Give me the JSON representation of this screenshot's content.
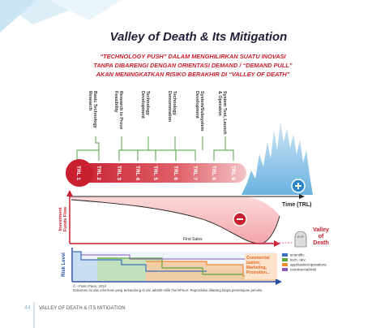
{
  "title": "Valley of Death & Its Mitigation",
  "subtitle": [
    "“TECHNOLOGY PUSH” DALAM MENGHILIRKAN SUATU INOVASI",
    "TANPA DIBARENGI DENGAN ORIENTASI DEMAND / “DEMAND PULL”",
    "AKAN MENINGKATKAN RISIKO BERAKHIR DI “VALLEY OF DEATH”"
  ],
  "stages": [
    [
      "Basic Technology",
      "Research"
    ],
    [
      "Research to Prove",
      "Feasibility"
    ],
    [
      "Technology",
      "Development"
    ],
    [
      "Technology",
      "Demonstration"
    ],
    [
      "System/Subsystem",
      "Development"
    ],
    [
      "System Test, Launch",
      "& Operation"
    ]
  ],
  "trl": [
    "TRL 1",
    "TRL 2",
    "TRL 3",
    "TRL 4",
    "TRL 5",
    "TRL 6",
    "TRL 7",
    "TRL 8",
    "TRL 9"
  ],
  "labels": {
    "time": "Time (TRL)",
    "investment": [
      "Investment",
      "Funds Flow"
    ],
    "first_sales": "First Sales",
    "valley": [
      "Valley",
      "of",
      "Death"
    ],
    "rip": "R.I.P",
    "risk": "Risk Level"
  },
  "commercial": [
    "Commercial",
    "isation,",
    "Marketing,",
    "Promotion..."
  ],
  "legend": [
    "scientific",
    "tech. dev.",
    "application/operations",
    "commercial/mkt"
  ],
  "footer": [
    "© - Florin Paun, 2018",
    "Dokumen ini dan informasi yang terkandung di sini adalah milik FlorinPaun. Reproduksi dilarang tanpa persetujuan penulis."
  ],
  "page": {
    "number": "44",
    "running_title": "VALLEY OF DEATH & ITS MITIGATION"
  }
}
